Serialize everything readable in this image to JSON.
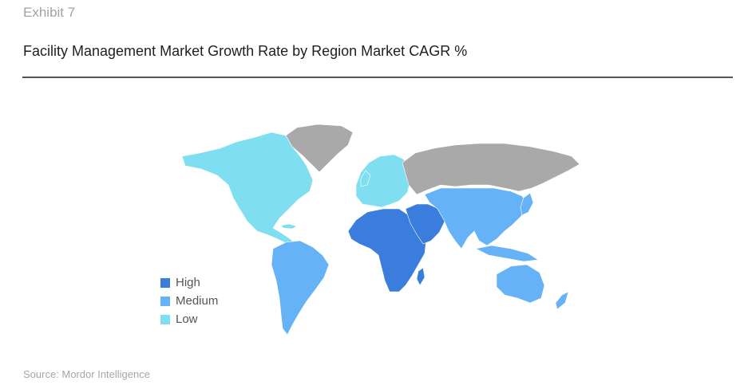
{
  "header": {
    "exhibit": "Exhibit 7",
    "title": "Facility Management Market Growth Rate by Region Market CAGR %"
  },
  "legend": {
    "items": [
      {
        "label": "High",
        "color": "#3b7ddd"
      },
      {
        "label": "Medium",
        "color": "#66b2f6"
      },
      {
        "label": "Low",
        "color": "#7fdff0"
      }
    ]
  },
  "map": {
    "no_data_color": "#a9a9a9",
    "regions": {
      "north_america": "Low",
      "south_america": "Medium",
      "europe": "Low",
      "russia": "no-data",
      "greenland": "no-data",
      "africa": "High",
      "middle_east": "High",
      "asia": "Medium",
      "oceania": "Medium"
    }
  },
  "footer": {
    "source": "Source: Mordor Intelligence"
  }
}
